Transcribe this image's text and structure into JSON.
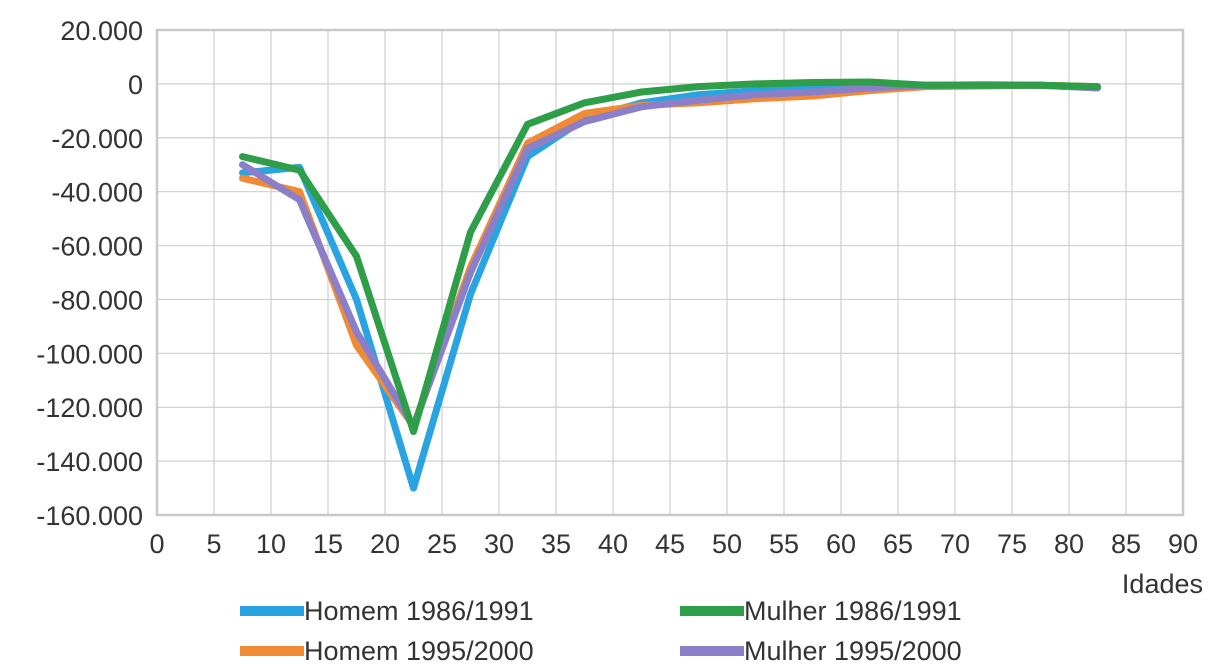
{
  "chart_data": {
    "type": "line",
    "xlabel": "Idades",
    "ylabel": "",
    "xlim": [
      0,
      90
    ],
    "ylim": [
      -160000,
      20000
    ],
    "xticks": [
      0,
      5,
      10,
      15,
      20,
      25,
      30,
      35,
      40,
      45,
      50,
      55,
      60,
      65,
      70,
      75,
      80,
      85,
      90
    ],
    "xtick_labels": [
      "0",
      "5",
      "10",
      "15",
      "20",
      "25",
      "30",
      "35",
      "40",
      "45",
      "50",
      "55",
      "60",
      "65",
      "70",
      "75",
      "80",
      "85",
      "90"
    ],
    "yticks": [
      20000,
      0,
      -20000,
      -40000,
      -60000,
      -80000,
      -100000,
      -120000,
      -140000,
      -160000
    ],
    "ytick_labels": [
      "20.000",
      "0",
      "-20.000",
      "-40.000",
      "-60.000",
      "-80.000",
      "-100.000",
      "-120.000",
      "-140.000",
      "-160.000"
    ],
    "grid": true,
    "legend_position": "bottom",
    "x": [
      7.5,
      12.5,
      17.5,
      22.5,
      27.5,
      32.5,
      37.5,
      42.5,
      47.5,
      52.5,
      57.5,
      62.5,
      67.5,
      72.5,
      77.5,
      82.5
    ],
    "series": [
      {
        "name": "Homem 1986/1991",
        "color": "#2aa4e0",
        "values": [
          -33000,
          -31000,
          -80000,
          -150000,
          -78000,
          -27000,
          -13000,
          -7000,
          -4000,
          -2500,
          -1500,
          -500,
          -500,
          -300,
          -500,
          -1500
        ]
      },
      {
        "name": "Mulher 1986/1991",
        "color": "#2e9e48",
        "values": [
          -27000,
          -32000,
          -64000,
          -129000,
          -55000,
          -15000,
          -7000,
          -3000,
          -1000,
          0,
          500,
          700,
          -500,
          -500,
          -500,
          -1000
        ]
      },
      {
        "name": "Homem 1995/2000",
        "color": "#f08a35",
        "values": [
          -35000,
          -40000,
          -97000,
          -127000,
          -68000,
          -22000,
          -11000,
          -8000,
          -7000,
          -5500,
          -4500,
          -2500,
          -1000,
          -800,
          -500,
          -1000
        ]
      },
      {
        "name": "Mulher 1995/2000",
        "color": "#8a7fc8",
        "values": [
          -30000,
          -43000,
          -92000,
          -127000,
          -70000,
          -24000,
          -14000,
          -8500,
          -6000,
          -4000,
          -3000,
          -1500,
          -500,
          -500,
          -500,
          -1500
        ]
      }
    ]
  }
}
